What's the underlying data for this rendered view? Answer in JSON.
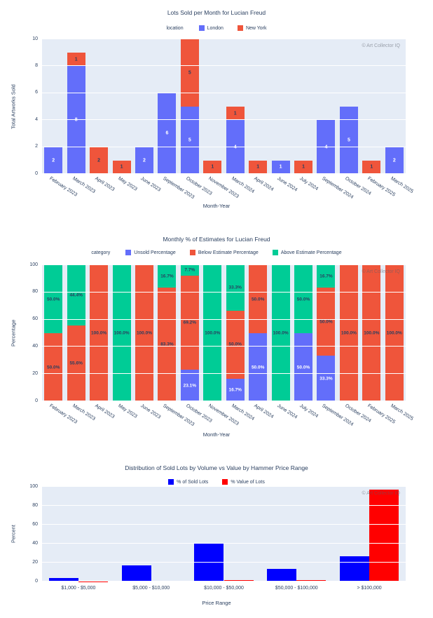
{
  "watermark": "© Art Collector IQ",
  "chart_data": [
    {
      "type": "bar",
      "mode": "stacked",
      "title": "Lots Sold per Month for Lucian Freud",
      "legend_title": "location",
      "xlabel": "Month-Year",
      "ylabel": "Total Artworks Sold",
      "ylim": [
        0,
        10
      ],
      "yticks": [
        0,
        2,
        4,
        6,
        8,
        10
      ],
      "grid": "on",
      "legend_position": "top-center",
      "label_format": "int",
      "categories": [
        "February 2023",
        "March 2023",
        "April 2023",
        "May 2023",
        "June 2023",
        "September 2023",
        "October 2023",
        "November 2023",
        "March 2024",
        "April 2024",
        "June 2024",
        "July 2024",
        "September 2024",
        "October 2024",
        "February 2025",
        "March 2025"
      ],
      "series": [
        {
          "name": "London",
          "color": "#636EFA",
          "label_color": "#ffffff",
          "values": [
            2,
            8,
            0,
            0,
            2,
            6,
            5,
            0,
            4,
            0,
            1,
            0,
            4,
            5,
            0,
            2
          ]
        },
        {
          "name": "New York",
          "color": "#EF553B",
          "label_color": "#2a3f5f",
          "values": [
            0,
            1,
            2,
            1,
            0,
            0,
            5,
            1,
            1,
            1,
            0,
            1,
            0,
            0,
            1,
            0
          ]
        }
      ]
    },
    {
      "type": "bar",
      "mode": "stacked",
      "title": "Monthly % of Estimates for Lucian Freud",
      "legend_title": "category",
      "xlabel": "Month-Year",
      "ylabel": "Percentage",
      "ylim": [
        0,
        100
      ],
      "yticks": [
        0,
        20,
        40,
        60,
        80,
        100
      ],
      "grid": "on",
      "legend_position": "top-center",
      "label_format": "pct1",
      "categories": [
        "February 2023",
        "March 2023",
        "April 2023",
        "May 2023",
        "June 2023",
        "September 2023",
        "October 2023",
        "November 2023",
        "March 2024",
        "April 2024",
        "June 2024",
        "July 2024",
        "September 2024",
        "October 2024",
        "February 2025",
        "March 2025"
      ],
      "series": [
        {
          "name": "Unsold Percentage",
          "color": "#636EFA",
          "label_color": "#ffffff",
          "values": [
            0,
            0,
            0,
            0,
            0,
            0,
            23.1,
            0,
            16.7,
            50,
            0,
            50,
            33.3,
            0,
            0,
            0
          ]
        },
        {
          "name": "Below Estimate Percentage",
          "color": "#EF553B",
          "label_color": "#2a3f5f",
          "values": [
            50,
            55.6,
            100,
            0,
            100,
            83.3,
            69.2,
            0,
            50,
            50,
            0,
            0,
            50,
            100,
            100,
            100
          ]
        },
        {
          "name": "Above Estimate Percentage",
          "color": "#00CC96",
          "label_color": "#2a3f5f",
          "values": [
            50,
            44.4,
            0,
            100,
            0,
            16.7,
            7.7,
            100,
            33.3,
            0,
            100,
            50,
            16.7,
            0,
            0,
            0
          ]
        }
      ]
    },
    {
      "type": "bar",
      "mode": "grouped",
      "title": "Distribution of Sold Lots by Volume vs Value by Hammer Price Range",
      "legend_title": "",
      "xlabel": "Price Range",
      "ylabel": "Percent",
      "ylim": [
        0,
        100
      ],
      "yticks": [
        0,
        20,
        40,
        60,
        80,
        100
      ],
      "grid": "on",
      "legend_position": "top-center",
      "label_format": "none",
      "categories": [
        "$1,000 - $5,000",
        "$5,000 - $10,000",
        "$10,000 - $50,000",
        "$50,000 - $100,000",
        "> $100,000"
      ],
      "series": [
        {
          "name": "% of Sold Lots",
          "color": "#0000FF",
          "label_color": "#ffffff",
          "values": [
            4,
            17,
            40,
            13,
            27
          ]
        },
        {
          "name": "% Value of Lots",
          "color": "#FF0000",
          "label_color": "#ffffff",
          "values": [
            0.3,
            0.6,
            1.2,
            1.6,
            97
          ]
        }
      ]
    }
  ]
}
